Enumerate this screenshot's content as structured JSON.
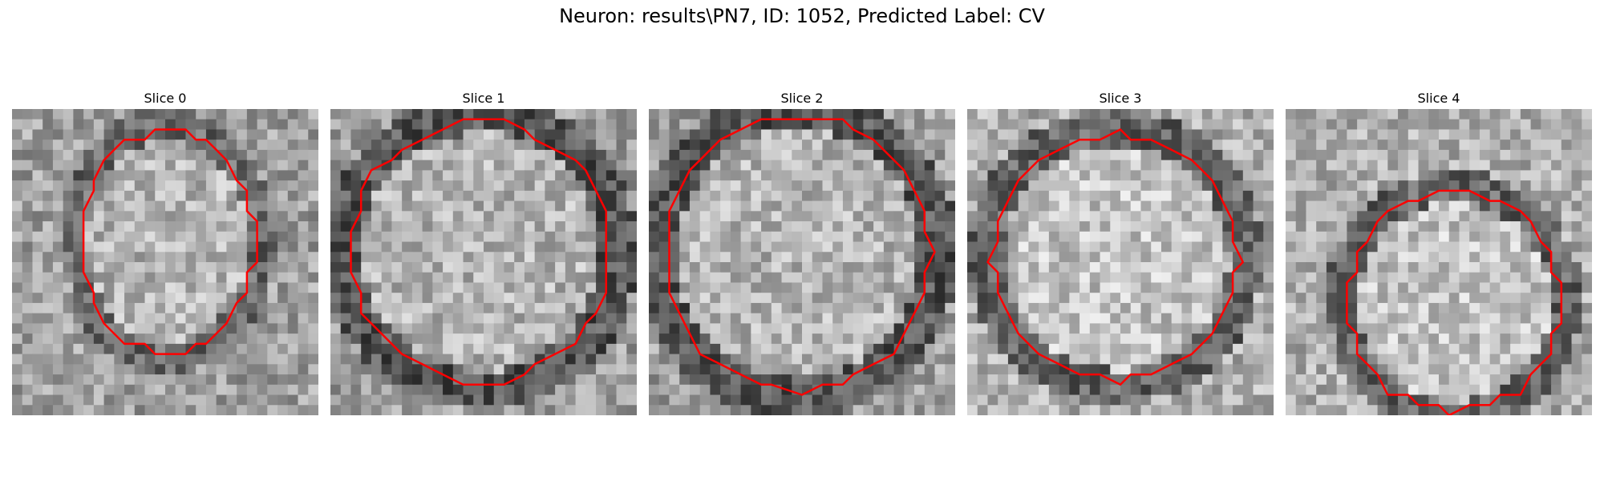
{
  "figure": {
    "title": "Neuron: results\\PN7, ID: 1052, Predicted Label: CV",
    "contour_color": "#ff0000",
    "colormap": "gray"
  },
  "panels": [
    {
      "title": "Slice 0",
      "seed": 11,
      "tone": "mid",
      "ring": "soft"
    },
    {
      "title": "Slice 1",
      "seed": 23,
      "tone": "mid",
      "ring": "dark"
    },
    {
      "title": "Slice 2",
      "seed": 37,
      "tone": "mid",
      "ring": "dark"
    },
    {
      "title": "Slice 3",
      "seed": 41,
      "tone": "light",
      "ring": "dark"
    },
    {
      "title": "Slice 4",
      "seed": 53,
      "tone": "light",
      "ring": "dark"
    }
  ]
}
